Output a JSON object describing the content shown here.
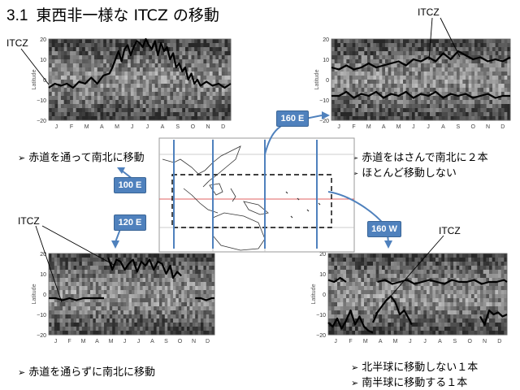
{
  "title": {
    "number": "3.1",
    "text": "東西非一様な ITCZ の移動"
  },
  "axis": {
    "ylabel": "Latitude",
    "yticks": [
      "20",
      "10",
      "0",
      "−10",
      "−20"
    ],
    "months": [
      "J",
      "F",
      "M",
      "A",
      "M",
      "J",
      "J",
      "A",
      "S",
      "O",
      "N",
      "D"
    ]
  },
  "callouts": {
    "e100": "100 E",
    "e120": "120 E",
    "e160": "160 E",
    "w160": "160 W"
  },
  "itcz_label": "ITCZ",
  "bullets": {
    "tl": [
      "赤道を通って南北に移動"
    ],
    "tr": [
      "赤道をはさんで南北に２本",
      "ほとんど移動しない"
    ],
    "bl": [
      "赤道を通らずに南北に移動"
    ],
    "br": [
      "北半球に移動しない１本",
      "南半球に移動する１本"
    ]
  },
  "map_label": "Tropical West Pacific map",
  "chart_data": [
    {
      "type": "line",
      "panel": "100E",
      "ylabel": "Latitude",
      "ylim": [
        -20,
        20
      ],
      "x_ticks": [
        "J",
        "F",
        "M",
        "A",
        "M",
        "J",
        "J",
        "A",
        "S",
        "O",
        "N",
        "D"
      ],
      "series": [
        {
          "x": [
            0,
            0.4,
            0.8,
            1.2,
            1.6,
            2,
            2.4,
            2.8,
            3.2,
            3.6,
            4,
            4.2,
            4.4,
            4.6,
            4.8,
            5,
            5.2,
            5.4,
            5.6,
            5.8,
            6,
            6.2,
            6.4,
            6.6,
            6.8,
            7,
            7.2,
            7.4,
            7.6,
            7.8,
            8,
            8.2,
            8.4,
            8.6,
            8.8,
            9,
            9.2,
            9.4,
            9.6,
            9.8,
            10,
            10.4,
            10.8,
            11.2,
            11.6,
            12
          ],
          "y": [
            -4,
            -2,
            -3,
            -2,
            -4,
            -1,
            -2,
            1,
            -2,
            2,
            3,
            6,
            10,
            14,
            9,
            15,
            17,
            12,
            16,
            19,
            18,
            16,
            20,
            17,
            15,
            19,
            12,
            18,
            14,
            16,
            10,
            13,
            6,
            8,
            4,
            6,
            0,
            3,
            -2,
            0,
            -3,
            -1,
            -3,
            -2,
            -4,
            -2
          ]
        }
      ]
    },
    {
      "type": "line",
      "panel": "160E",
      "ylabel": "Latitude",
      "ylim": [
        -20,
        20
      ],
      "x_ticks": [
        "J",
        "F",
        "M",
        "A",
        "M",
        "J",
        "J",
        "A",
        "S",
        "O",
        "N",
        "D"
      ],
      "series": [
        {
          "x": [
            0,
            0.5,
            1,
            1.5,
            2,
            2.5,
            3,
            3.5,
            4,
            4.5,
            5,
            5.5,
            6,
            6.5,
            7,
            7.5,
            8,
            8.5,
            9,
            9.5,
            10,
            10.5,
            11,
            11.5,
            12
          ],
          "y": [
            6,
            5,
            7,
            5,
            6,
            8,
            6,
            7,
            8,
            9,
            7,
            10,
            9,
            11,
            9,
            13,
            10,
            14,
            12,
            10,
            11,
            9,
            10,
            9,
            11
          ]
        },
        {
          "x": [
            0,
            0.5,
            1,
            1.5,
            2,
            2.5,
            3,
            3.5,
            4,
            4.5,
            5,
            5.5,
            6,
            6.5,
            7,
            7.5,
            8,
            8.5,
            9,
            9.5,
            10,
            10.5,
            11,
            11.5,
            12
          ],
          "y": [
            -8,
            -8,
            -6,
            -9,
            -7,
            -8,
            -6,
            -9,
            -7,
            -8,
            -6,
            -9,
            -7,
            -8,
            -6,
            -9,
            -7,
            -8,
            -7,
            -9,
            -8,
            -7,
            -9,
            -8,
            -8
          ]
        }
      ]
    },
    {
      "type": "line",
      "panel": "120E",
      "ylabel": "Latitude",
      "ylim": [
        -20,
        20
      ],
      "x_ticks": [
        "J",
        "F",
        "M",
        "A",
        "M",
        "J",
        "J",
        "A",
        "S",
        "O",
        "N",
        "D"
      ],
      "series": [
        {
          "x": [
            0,
            0.5,
            1,
            1.5,
            2,
            2.5,
            3,
            3.5,
            4
          ],
          "y": [
            -2,
            -2,
            -3,
            -2,
            -3,
            -2,
            -2,
            -2,
            -2
          ]
        },
        {
          "x": [
            4.3,
            4.6,
            4.9,
            5.2,
            5.5,
            5.8,
            6.1,
            6.4,
            6.7,
            7,
            7.3,
            7.6,
            7.9,
            8.2,
            8.5,
            8.8,
            9,
            9.3,
            9.6
          ],
          "y": [
            18,
            12,
            17,
            16,
            12,
            15,
            17,
            11,
            16,
            14,
            17,
            12,
            16,
            15,
            10,
            14,
            8,
            11,
            9
          ]
        },
        {
          "x": [
            10.6,
            11,
            11.4,
            11.8,
            12
          ],
          "y": [
            -2,
            -2,
            -3,
            -2,
            -2
          ]
        }
      ]
    },
    {
      "type": "line",
      "panel": "160W",
      "ylabel": "Latitude",
      "ylim": [
        -20,
        20
      ],
      "x_ticks": [
        "J",
        "F",
        "M",
        "A",
        "M",
        "J",
        "J",
        "A",
        "S",
        "O",
        "N",
        "D"
      ],
      "series": [
        {
          "x": [
            0,
            0.4,
            0.8,
            1.2
          ],
          "y": [
            7,
            6,
            8,
            6
          ]
        },
        {
          "x": [
            3.3,
            3.8,
            4.3,
            4.8,
            5.3,
            5.8,
            6.3,
            6.8,
            7.3,
            7.8,
            8.3,
            8.8,
            9.3,
            9.8,
            10.3,
            10.8,
            11.3,
            11.8,
            12
          ],
          "y": [
            6,
            7,
            5,
            6,
            7,
            5,
            6,
            7,
            6,
            5,
            7,
            6,
            6,
            7,
            5,
            6,
            6,
            7,
            6
          ]
        },
        {
          "x": [
            0,
            0.3,
            0.6,
            0.9,
            1.2,
            1.5,
            1.8,
            2.1,
            2.4,
            2.7,
            3
          ],
          "y": [
            -14,
            -16,
            -12,
            -17,
            -13,
            -8,
            -15,
            -11,
            -16,
            -18,
            -19
          ]
        },
        {
          "x": [
            3,
            3.3,
            3.6,
            3.9,
            4.2,
            4.5,
            4.8,
            5.1,
            5.4,
            5.6
          ],
          "y": [
            -14,
            -9,
            -6,
            -3,
            -1,
            -4,
            -10,
            -8,
            -12,
            -15
          ]
        },
        {
          "x": [
            10.2,
            10.5,
            10.8,
            11.1,
            11.4,
            11.7,
            12
          ],
          "y": [
            -11,
            -15,
            -8,
            -10,
            -9,
            -11,
            -10
          ]
        }
      ]
    }
  ],
  "colors": {
    "callout": "#4f81bd",
    "accent": "#4f81bd",
    "map_line": "#e06060"
  }
}
